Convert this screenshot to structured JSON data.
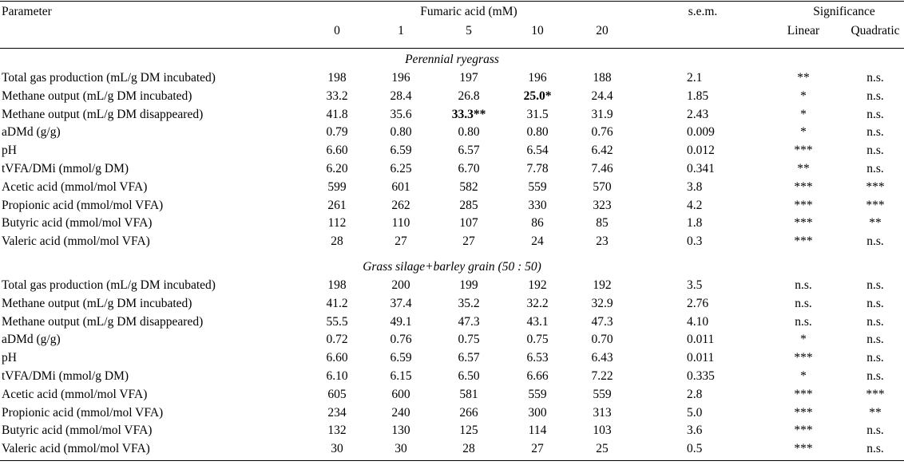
{
  "table": {
    "headers": {
      "parameter": "Parameter",
      "fumaric": "Fumaric acid (mM)",
      "doses": [
        "0",
        "1",
        "5",
        "10",
        "20"
      ],
      "sem": "s.e.m.",
      "significance": "Significance",
      "linear": "Linear",
      "quadratic": "Quadratic"
    },
    "sections": [
      {
        "title": "Perennial ryegrass",
        "rows": [
          {
            "parameter": "Total gas production (mL/g DM incubated)",
            "values": [
              "198",
              "196",
              "197",
              "196",
              "188"
            ],
            "sem": "2.1",
            "linear": "**",
            "quadratic": "n.s."
          },
          {
            "parameter": "Methane output (mL/g DM incubated)",
            "values": [
              "33.2",
              "28.4",
              "26.8",
              "25.0*",
              "24.4"
            ],
            "sem": "1.85",
            "linear": "*",
            "quadratic": "n.s."
          },
          {
            "parameter": "Methane output (mL/g DM disappeared)",
            "values": [
              "41.8",
              "35.6",
              "33.3**",
              "31.5",
              "31.9"
            ],
            "sem": "2.43",
            "linear": "*",
            "quadratic": "n.s."
          },
          {
            "parameter": "aDMd (g/g)",
            "values": [
              "0.79",
              "0.80",
              "0.80",
              "0.80",
              "0.76"
            ],
            "sem": "0.009",
            "linear": "*",
            "quadratic": "n.s."
          },
          {
            "parameter": "pH",
            "values": [
              "6.60",
              "6.59",
              "6.57",
              "6.54",
              "6.42"
            ],
            "sem": "0.012",
            "linear": "***",
            "quadratic": "n.s."
          },
          {
            "parameter": "tVFA/DMi (mmol/g DM)",
            "values": [
              "6.20",
              "6.25",
              "6.70",
              "7.78",
              "7.46"
            ],
            "sem": "0.341",
            "linear": "**",
            "quadratic": "n.s."
          },
          {
            "parameter": "Acetic acid (mmol/mol VFA)",
            "values": [
              "599",
              "601",
              "582",
              "559",
              "570"
            ],
            "sem": "3.8",
            "linear": "***",
            "quadratic": "***"
          },
          {
            "parameter": "Propionic acid (mmol/mol VFA)",
            "values": [
              "261",
              "262",
              "285",
              "330",
              "323"
            ],
            "sem": "4.2",
            "linear": "***",
            "quadratic": "***"
          },
          {
            "parameter": "Butyric acid (mmol/mol VFA)",
            "values": [
              "112",
              "110",
              "107",
              "86",
              "85"
            ],
            "sem": "1.8",
            "linear": "***",
            "quadratic": "**"
          },
          {
            "parameter": "Valeric acid (mmol/mol VFA)",
            "values": [
              "28",
              "27",
              "27",
              "24",
              "23"
            ],
            "sem": "0.3",
            "linear": "***",
            "quadratic": "n.s."
          }
        ]
      },
      {
        "title": "Grass silage+barley grain (50 : 50)",
        "rows": [
          {
            "parameter": "Total gas production (mL/g DM incubated)",
            "values": [
              "198",
              "200",
              "199",
              "192",
              "192"
            ],
            "sem": "3.5",
            "linear": "n.s.",
            "quadratic": "n.s."
          },
          {
            "parameter": "Methane output (mL/g DM incubated)",
            "values": [
              "41.2",
              "37.4",
              "35.2",
              "32.2",
              "32.9"
            ],
            "sem": "2.76",
            "linear": "n.s.",
            "quadratic": "n.s."
          },
          {
            "parameter": "Methane output (mL/g DM disappeared)",
            "values": [
              "55.5",
              "49.1",
              "47.3",
              "43.1",
              "47.3"
            ],
            "sem": "4.10",
            "linear": "n.s.",
            "quadratic": "n.s."
          },
          {
            "parameter": "aDMd (g/g)",
            "values": [
              "0.72",
              "0.76",
              "0.75",
              "0.75",
              "0.70"
            ],
            "sem": "0.011",
            "linear": "*",
            "quadratic": "n.s."
          },
          {
            "parameter": "pH",
            "values": [
              "6.60",
              "6.59",
              "6.57",
              "6.53",
              "6.43"
            ],
            "sem": "0.011",
            "linear": "***",
            "quadratic": "n.s."
          },
          {
            "parameter": "tVFA/DMi (mmol/g DM)",
            "values": [
              "6.10",
              "6.15",
              "6.50",
              "6.66",
              "7.22"
            ],
            "sem": "0.335",
            "linear": "*",
            "quadratic": "n.s."
          },
          {
            "parameter": "Acetic acid (mmol/mol VFA)",
            "values": [
              "605",
              "600",
              "581",
              "559",
              "559"
            ],
            "sem": "2.8",
            "linear": "***",
            "quadratic": "***"
          },
          {
            "parameter": "Propionic acid (mmol/mol VFA)",
            "values": [
              "234",
              "240",
              "266",
              "300",
              "313"
            ],
            "sem": "5.0",
            "linear": "***",
            "quadratic": "**"
          },
          {
            "parameter": "Butyric acid (mmol/mol VFA)",
            "values": [
              "132",
              "130",
              "125",
              "114",
              "103"
            ],
            "sem": "3.6",
            "linear": "***",
            "quadratic": "n.s."
          },
          {
            "parameter": "Valeric acid (mmol/mol VFA)",
            "values": [
              "30",
              "30",
              "28",
              "27",
              "25"
            ],
            "sem": "0.5",
            "linear": "***",
            "quadratic": "n.s."
          }
        ]
      }
    ]
  }
}
